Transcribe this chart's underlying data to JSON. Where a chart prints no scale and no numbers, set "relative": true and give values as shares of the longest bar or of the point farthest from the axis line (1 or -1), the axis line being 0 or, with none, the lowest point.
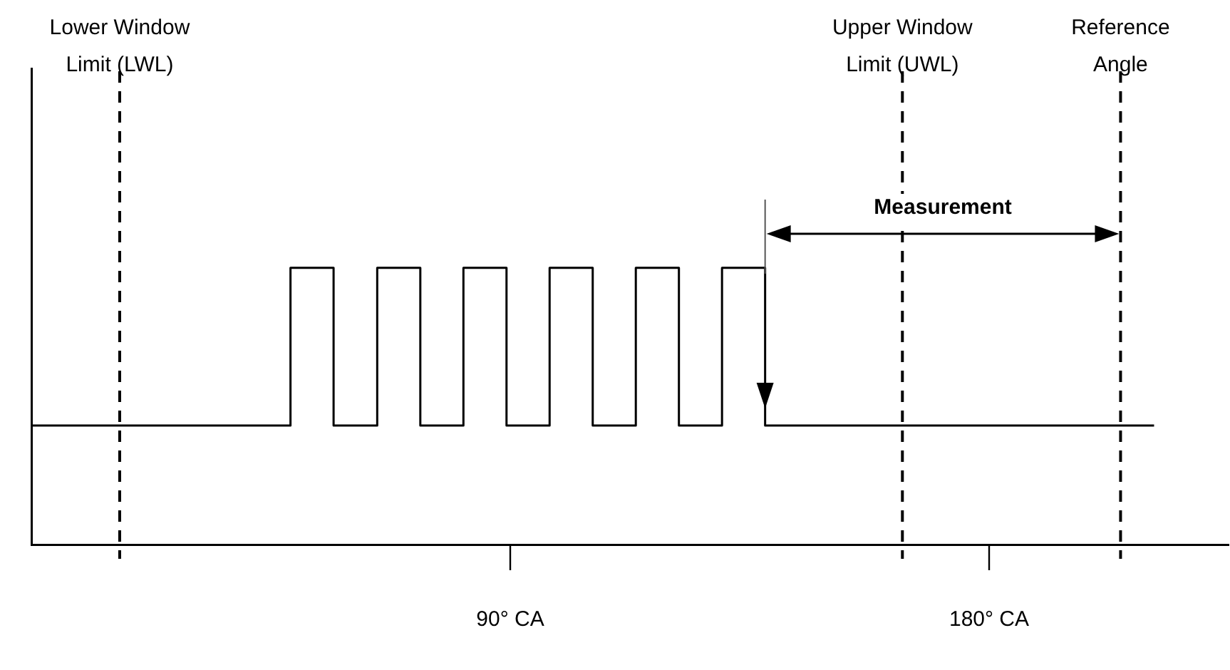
{
  "chart_data": {
    "type": "step",
    "relative": true,
    "tick_labels": "x",
    "grid": false,
    "color": "#000000",
    "x": [
      0,
      48.7,
      56.8,
      65,
      73.1,
      81.2,
      89.3,
      97.4,
      105.5,
      113.6,
      121.7,
      129.8,
      137.9,
      211
    ],
    "values": [
      0.43,
      1,
      0.43,
      1,
      0.43,
      1,
      0.43,
      1,
      0.43,
      1,
      0.43,
      1,
      0.43,
      0.43
    ],
    "xlim": [
      0,
      225
    ],
    "xticks": [
      {
        "value": 90,
        "label": "90° CA"
      },
      {
        "value": 180,
        "label": "180° CA"
      }
    ],
    "ref_lines": [
      {
        "axis": "x",
        "value": 16.6,
        "label": "Lower Window Limit (LWL)",
        "line_style": "dashed"
      },
      {
        "axis": "x",
        "value": 163.7,
        "label": "Upper Window Limit (UWL)",
        "line_style": "dashed"
      },
      {
        "axis": "x",
        "value": 204.7,
        "label": "Reference Angle",
        "line_style": "dashed"
      }
    ],
    "annotations": [
      "Measurement"
    ]
  }
}
